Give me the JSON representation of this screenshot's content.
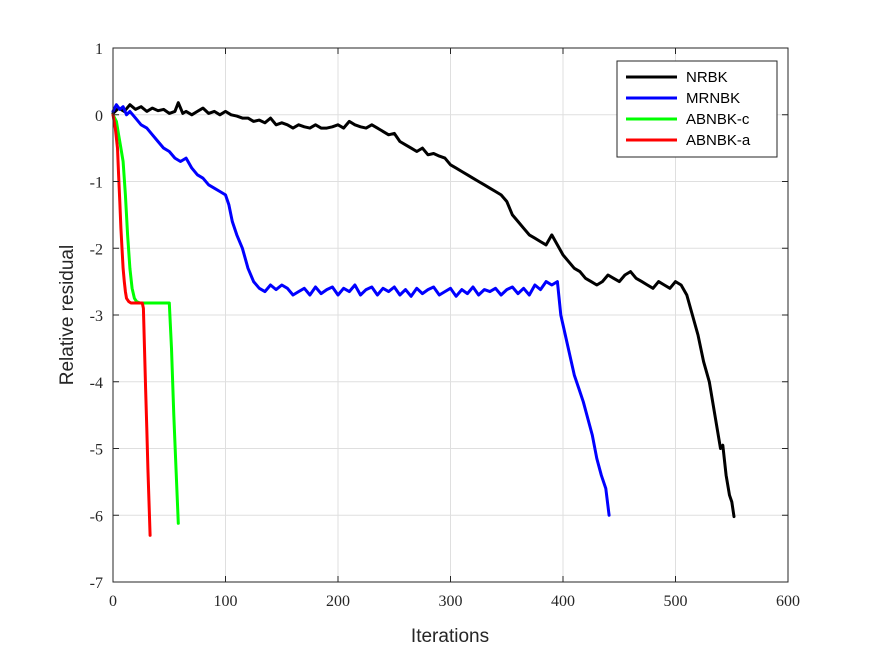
{
  "chart_data": {
    "type": "line",
    "title": "",
    "xlabel": "Iterations",
    "ylabel": "Relative residual",
    "xlim": [
      0,
      600
    ],
    "ylim": [
      -7,
      1
    ],
    "xticks": [
      0,
      100,
      200,
      300,
      400,
      500,
      600
    ],
    "yticks": [
      1,
      0,
      -1,
      -2,
      -3,
      -4,
      -5,
      -6,
      -7
    ],
    "grid": true,
    "legend_position": "top-right",
    "series": [
      {
        "name": "NRBK",
        "color": "#000000",
        "x": [
          0,
          5,
          10,
          15,
          20,
          25,
          30,
          35,
          40,
          45,
          50,
          55,
          58,
          62,
          65,
          70,
          75,
          80,
          85,
          90,
          95,
          100,
          105,
          110,
          115,
          120,
          125,
          130,
          135,
          140,
          145,
          150,
          155,
          160,
          165,
          170,
          175,
          180,
          185,
          190,
          195,
          200,
          205,
          210,
          215,
          220,
          225,
          230,
          235,
          240,
          245,
          250,
          255,
          260,
          265,
          270,
          275,
          280,
          285,
          290,
          295,
          300,
          305,
          310,
          315,
          320,
          325,
          330,
          335,
          340,
          345,
          350,
          355,
          360,
          365,
          370,
          375,
          380,
          385,
          390,
          395,
          400,
          405,
          410,
          415,
          420,
          425,
          430,
          435,
          440,
          445,
          450,
          455,
          460,
          465,
          470,
          475,
          480,
          485,
          490,
          495,
          500,
          505,
          510,
          515,
          520,
          525,
          530,
          535,
          540,
          542,
          545,
          548,
          550,
          552
        ],
        "y": [
          0.02,
          0.1,
          0.05,
          0.15,
          0.08,
          0.12,
          0.05,
          0.1,
          0.06,
          0.08,
          0.02,
          0.05,
          0.18,
          0.02,
          0.05,
          0.0,
          0.05,
          0.1,
          0.02,
          0.05,
          0.0,
          0.05,
          0.0,
          -0.02,
          -0.05,
          -0.05,
          -0.1,
          -0.08,
          -0.12,
          -0.05,
          -0.15,
          -0.12,
          -0.15,
          -0.2,
          -0.15,
          -0.18,
          -0.2,
          -0.15,
          -0.2,
          -0.2,
          -0.18,
          -0.15,
          -0.2,
          -0.1,
          -0.15,
          -0.18,
          -0.2,
          -0.15,
          -0.2,
          -0.25,
          -0.3,
          -0.28,
          -0.4,
          -0.45,
          -0.5,
          -0.55,
          -0.5,
          -0.6,
          -0.58,
          -0.62,
          -0.65,
          -0.75,
          -0.8,
          -0.85,
          -0.9,
          -0.95,
          -1.0,
          -1.05,
          -1.1,
          -1.15,
          -1.2,
          -1.3,
          -1.5,
          -1.6,
          -1.7,
          -1.8,
          -1.85,
          -1.9,
          -1.95,
          -1.8,
          -1.95,
          -2.1,
          -2.2,
          -2.3,
          -2.35,
          -2.45,
          -2.5,
          -2.55,
          -2.5,
          -2.4,
          -2.45,
          -2.5,
          -2.4,
          -2.35,
          -2.45,
          -2.5,
          -2.55,
          -2.6,
          -2.5,
          -2.55,
          -2.6,
          -2.5,
          -2.55,
          -2.7,
          -3.0,
          -3.3,
          -3.7,
          -4.0,
          -4.5,
          -5.0,
          -4.95,
          -5.4,
          -5.7,
          -5.8,
          -6.02
        ]
      },
      {
        "name": "MRNBK",
        "color": "#0000ff",
        "x": [
          0,
          3,
          6,
          9,
          12,
          15,
          20,
          25,
          30,
          35,
          40,
          45,
          50,
          55,
          60,
          65,
          70,
          75,
          80,
          85,
          90,
          95,
          100,
          103,
          106,
          110,
          115,
          120,
          125,
          130,
          135,
          140,
          145,
          150,
          155,
          160,
          165,
          170,
          175,
          180,
          185,
          190,
          195,
          200,
          205,
          210,
          215,
          220,
          225,
          230,
          235,
          240,
          245,
          250,
          255,
          260,
          265,
          270,
          275,
          280,
          285,
          290,
          295,
          300,
          305,
          310,
          315,
          320,
          325,
          330,
          335,
          340,
          345,
          350,
          355,
          360,
          365,
          370,
          375,
          380,
          385,
          390,
          395,
          398,
          402,
          406,
          410,
          414,
          418,
          422,
          426,
          430,
          434,
          438,
          441
        ],
        "y": [
          0.05,
          0.15,
          0.08,
          0.12,
          0.0,
          0.05,
          -0.05,
          -0.15,
          -0.2,
          -0.3,
          -0.4,
          -0.5,
          -0.55,
          -0.65,
          -0.7,
          -0.65,
          -0.8,
          -0.9,
          -0.95,
          -1.05,
          -1.1,
          -1.15,
          -1.2,
          -1.35,
          -1.6,
          -1.8,
          -2.0,
          -2.3,
          -2.5,
          -2.6,
          -2.65,
          -2.55,
          -2.62,
          -2.55,
          -2.6,
          -2.7,
          -2.65,
          -2.6,
          -2.7,
          -2.58,
          -2.68,
          -2.62,
          -2.58,
          -2.7,
          -2.6,
          -2.65,
          -2.55,
          -2.7,
          -2.62,
          -2.58,
          -2.7,
          -2.6,
          -2.65,
          -2.58,
          -2.7,
          -2.62,
          -2.72,
          -2.6,
          -2.68,
          -2.62,
          -2.58,
          -2.7,
          -2.65,
          -2.6,
          -2.72,
          -2.62,
          -2.68,
          -2.58,
          -2.7,
          -2.62,
          -2.65,
          -2.6,
          -2.7,
          -2.62,
          -2.58,
          -2.68,
          -2.6,
          -2.7,
          -2.55,
          -2.62,
          -2.5,
          -2.55,
          -2.5,
          -3.0,
          -3.3,
          -3.6,
          -3.9,
          -4.1,
          -4.3,
          -4.55,
          -4.8,
          -5.15,
          -5.4,
          -5.6,
          -6.0
        ]
      },
      {
        "name": "ABNBK-c",
        "color": "#00ff00",
        "x": [
          0,
          3,
          5,
          7,
          9,
          11,
          13,
          15,
          17,
          19,
          21,
          24,
          27,
          30,
          35,
          40,
          45,
          50,
          52,
          54,
          56,
          58
        ],
        "y": [
          0.0,
          -0.1,
          -0.3,
          -0.5,
          -0.7,
          -1.2,
          -1.8,
          -2.3,
          -2.6,
          -2.75,
          -2.8,
          -2.82,
          -2.82,
          -2.82,
          -2.82,
          -2.82,
          -2.82,
          -2.82,
          -3.5,
          -4.5,
          -5.3,
          -6.12
        ]
      },
      {
        "name": "ABNBK-a",
        "color": "#ff0000",
        "x": [
          0,
          2,
          4,
          5,
          6,
          7,
          8,
          9,
          10,
          11,
          12,
          14,
          16,
          18,
          20,
          22,
          24,
          26,
          27,
          28,
          29,
          30,
          31,
          32,
          33
        ],
        "y": [
          0.0,
          -0.2,
          -0.5,
          -0.9,
          -1.3,
          -1.7,
          -2.0,
          -2.3,
          -2.5,
          -2.65,
          -2.75,
          -2.8,
          -2.82,
          -2.82,
          -2.82,
          -2.82,
          -2.82,
          -2.82,
          -2.9,
          -3.5,
          -4.1,
          -4.7,
          -5.3,
          -5.8,
          -6.3
        ]
      }
    ]
  }
}
